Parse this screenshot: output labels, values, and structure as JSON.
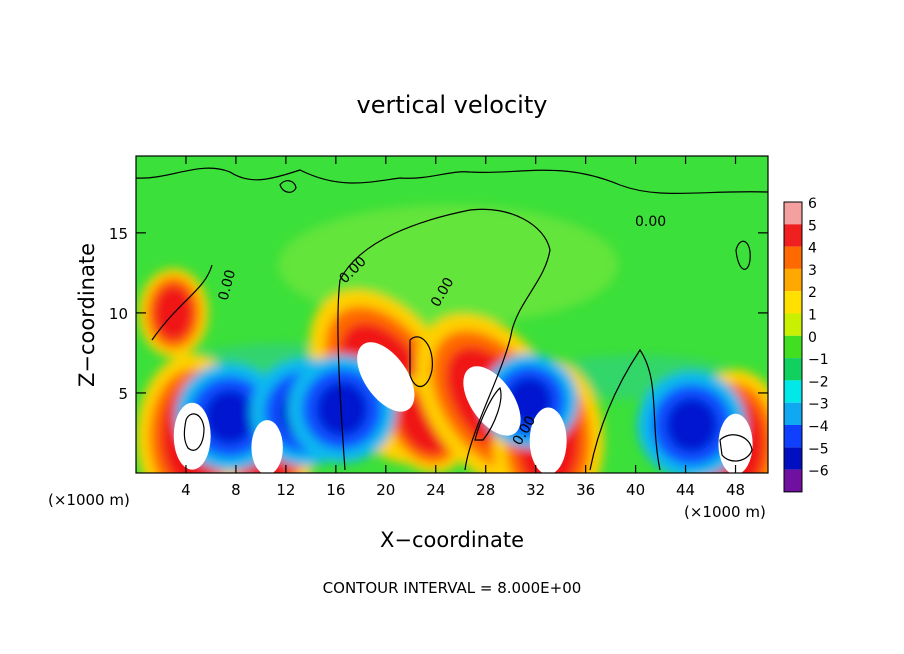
{
  "chart_data": {
    "type": "heatmap",
    "title": "vertical velocity",
    "xlabel": "X−coordinate",
    "ylabel": "Z−coordinate",
    "x_units_left": "(×1000 m)",
    "x_units_right": "(×1000 m)",
    "xlim": [
      0,
      50.6
    ],
    "ylim": [
      0,
      19.8
    ],
    "x_ticks": [
      4,
      8,
      12,
      16,
      20,
      24,
      28,
      32,
      36,
      40,
      44,
      48
    ],
    "y_ticks": [
      5,
      10,
      15
    ],
    "colorbar": {
      "levels": [
        "6",
        "5",
        "4",
        "3",
        "2",
        "1",
        "0",
        "−1",
        "−2",
        "−3",
        "−4",
        "−5",
        "−6"
      ],
      "colors": [
        "#f4a0a0",
        "#f02020",
        "#ff6a00",
        "#ffa800",
        "#ffe000",
        "#c8f000",
        "#40e020",
        "#10d060",
        "#00e8e8",
        "#10a8f0",
        "#1040ff",
        "#0010c0",
        "#7010a0"
      ]
    },
    "contour_labels": [
      "0.00",
      "0.00",
      "0.00",
      "0.00",
      "0.00"
    ],
    "contour_interval_text": "CONTOUR INTERVAL = 8.000E+00",
    "features": [
      {
        "type": "updraft",
        "x": 4.5,
        "z": 2.3,
        "peak": 8
      },
      {
        "type": "updraft",
        "x": 10.5,
        "z": 1.6,
        "peak": 6
      },
      {
        "type": "updraft",
        "x": 20.0,
        "z": 6.0,
        "peak": 10
      },
      {
        "type": "updraft",
        "x": 23.0,
        "z": 3.0,
        "peak": 4
      },
      {
        "type": "updraft",
        "x": 28.5,
        "z": 4.5,
        "peak": 10
      },
      {
        "type": "updraft",
        "x": 33.0,
        "z": 2.0,
        "peak": 8
      },
      {
        "type": "updraft",
        "x": 48.0,
        "z": 1.8,
        "peak": 7
      },
      {
        "type": "updraft",
        "x": 3.0,
        "z": 10.0,
        "peak": 3
      },
      {
        "type": "downdraft",
        "x": 7.5,
        "z": 3.5,
        "peak": -5
      },
      {
        "type": "downdraft",
        "x": 13.5,
        "z": 3.8,
        "peak": -5
      },
      {
        "type": "downdraft",
        "x": 16.5,
        "z": 4.0,
        "peak": -5
      },
      {
        "type": "downdraft",
        "x": 31.5,
        "z": 4.5,
        "peak": -4
      },
      {
        "type": "downdraft",
        "x": 44.5,
        "z": 3.0,
        "peak": -5
      }
    ]
  }
}
